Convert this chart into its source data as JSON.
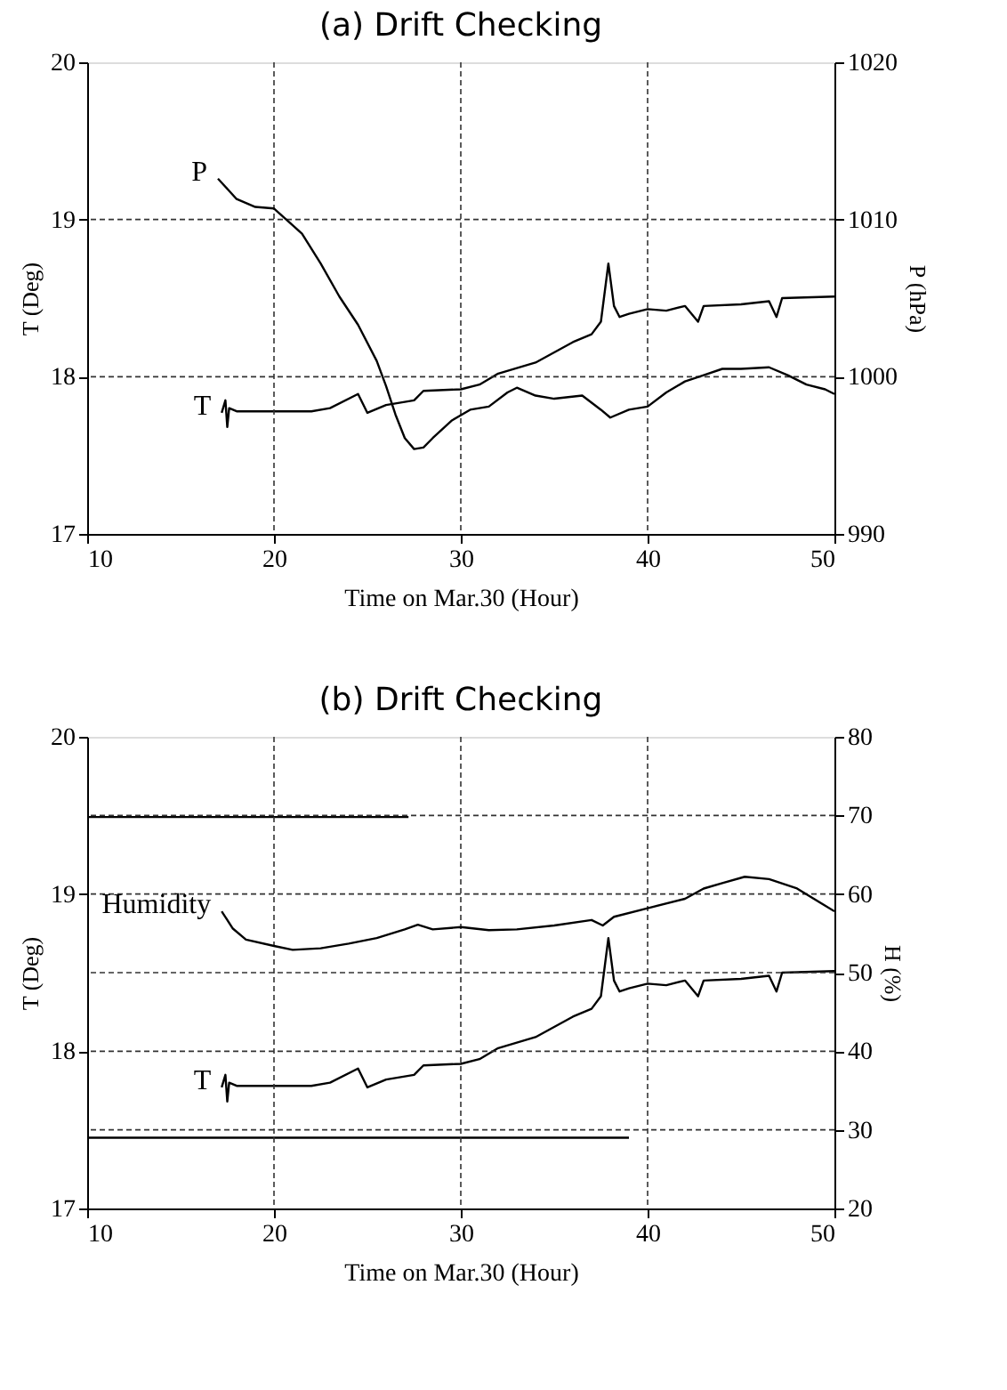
{
  "chart_data": [
    {
      "type": "line",
      "title": "(a)  Drift Checking",
      "xlabel": "Time on Mar.30  (Hour)",
      "ylabel": "T (Deg)",
      "y2label": "P (hPa)",
      "xlim": [
        10,
        50
      ],
      "xticks": [
        10,
        20,
        30,
        40,
        50
      ],
      "ylim": [
        17,
        20
      ],
      "yticks": [
        17,
        18,
        19,
        20
      ],
      "y2lim": [
        990,
        1020
      ],
      "y2ticks": [
        990,
        1000,
        1010,
        1020
      ],
      "grid": true,
      "series": [
        {
          "name": "T",
          "color": "#000000",
          "x": [
            17.2,
            17.4,
            17.5,
            17.6,
            18,
            20,
            22,
            23,
            24.5,
            25,
            26,
            27.5,
            28,
            30,
            31,
            32,
            34,
            36,
            37,
            37.5,
            37.9,
            38.2,
            38.5,
            39,
            40,
            41,
            42,
            42.7,
            43,
            45,
            46.5,
            46.9,
            47.2,
            50
          ],
          "values": [
            17.77,
            17.85,
            17.68,
            17.8,
            17.78,
            17.78,
            17.78,
            17.8,
            17.89,
            17.77,
            17.82,
            17.85,
            17.91,
            17.92,
            17.95,
            18.02,
            18.09,
            18.22,
            18.27,
            18.35,
            18.72,
            18.45,
            18.38,
            18.4,
            18.43,
            18.42,
            18.45,
            18.35,
            18.45,
            18.46,
            18.48,
            18.38,
            18.5,
            18.51
          ]
        },
        {
          "name": "P",
          "color": "#000000",
          "axis": "y2",
          "x": [
            17,
            18,
            19,
            20,
            21.5,
            22.5,
            23.5,
            24.5,
            25.5,
            26,
            26.5,
            27,
            27.5,
            28,
            28.5,
            29.5,
            30.5,
            31.5,
            32.5,
            33,
            34,
            35,
            36.5,
            37.5,
            38,
            39,
            40,
            41,
            42,
            43,
            44,
            45,
            46.5,
            47.5,
            48.5,
            49.5,
            50
          ],
          "values": [
            1012.6,
            1011.3,
            1010.8,
            1010.7,
            1009.1,
            1007.2,
            1005.1,
            1003.3,
            1001.0,
            999.4,
            997.6,
            996.1,
            995.4,
            995.5,
            996.1,
            997.2,
            997.9,
            998.1,
            999.0,
            999.3,
            998.8,
            998.6,
            998.8,
            997.9,
            997.4,
            997.9,
            998.1,
            999.0,
            999.7,
            1000.1,
            1000.5,
            1000.5,
            1000.6,
            1000.1,
            999.5,
            999.2,
            998.9
          ]
        }
      ]
    },
    {
      "type": "line",
      "title": "(b)  Drift Checking",
      "xlabel": "Time on Mar.30  (Hour)",
      "ylabel": "T (Deg)",
      "y2label": "H (%)",
      "xlim": [
        10,
        50
      ],
      "xticks": [
        10,
        20,
        30,
        40,
        50
      ],
      "ylim": [
        17,
        20
      ],
      "yticks": [
        17,
        18,
        19,
        20
      ],
      "y2lim": [
        20,
        80
      ],
      "y2ticks": [
        20,
        30,
        40,
        50,
        60,
        70,
        80
      ],
      "grid": true,
      "series": [
        {
          "name": "T",
          "color": "#000000",
          "x": [
            17.2,
            17.4,
            17.5,
            17.6,
            18,
            20,
            22,
            23,
            24.5,
            25,
            26,
            27.5,
            28,
            30,
            31,
            32,
            34,
            36,
            37,
            37.5,
            37.9,
            38.2,
            38.5,
            39,
            40,
            41,
            42,
            42.7,
            43,
            45,
            46.5,
            46.9,
            47.2,
            50
          ],
          "values": [
            17.77,
            17.85,
            17.68,
            17.8,
            17.78,
            17.78,
            17.78,
            17.8,
            17.89,
            17.77,
            17.82,
            17.85,
            17.91,
            17.92,
            17.95,
            18.02,
            18.09,
            18.22,
            18.27,
            18.35,
            18.72,
            18.45,
            18.38,
            18.4,
            18.43,
            18.42,
            18.45,
            18.35,
            18.45,
            18.46,
            18.48,
            18.38,
            18.5,
            18.51
          ]
        },
        {
          "name": "Humidity",
          "color": "#000000",
          "axis": "y2",
          "x": [
            17.2,
            17.8,
            18.5,
            20,
            21,
            22.5,
            24,
            25.5,
            27,
            27.7,
            28.5,
            30,
            31.5,
            33,
            35,
            37,
            37.6,
            38.2,
            40,
            42,
            43,
            44,
            45.2,
            46.5,
            48,
            50
          ],
          "values": [
            57.8,
            55.6,
            54.2,
            53.4,
            52.9,
            53.1,
            53.7,
            54.4,
            55.5,
            56.1,
            55.5,
            55.8,
            55.4,
            55.5,
            56.0,
            56.7,
            56.0,
            57.1,
            58.2,
            59.4,
            60.7,
            61.4,
            62.2,
            61.9,
            60.7,
            57.8
          ]
        },
        {
          "color": "#000000",
          "x": [
            10,
            27.2
          ],
          "values": [
            19.49,
            19.49
          ]
        },
        {
          "color": "#000000",
          "x": [
            10,
            39
          ],
          "values": [
            17.45,
            17.45
          ]
        }
      ]
    }
  ]
}
